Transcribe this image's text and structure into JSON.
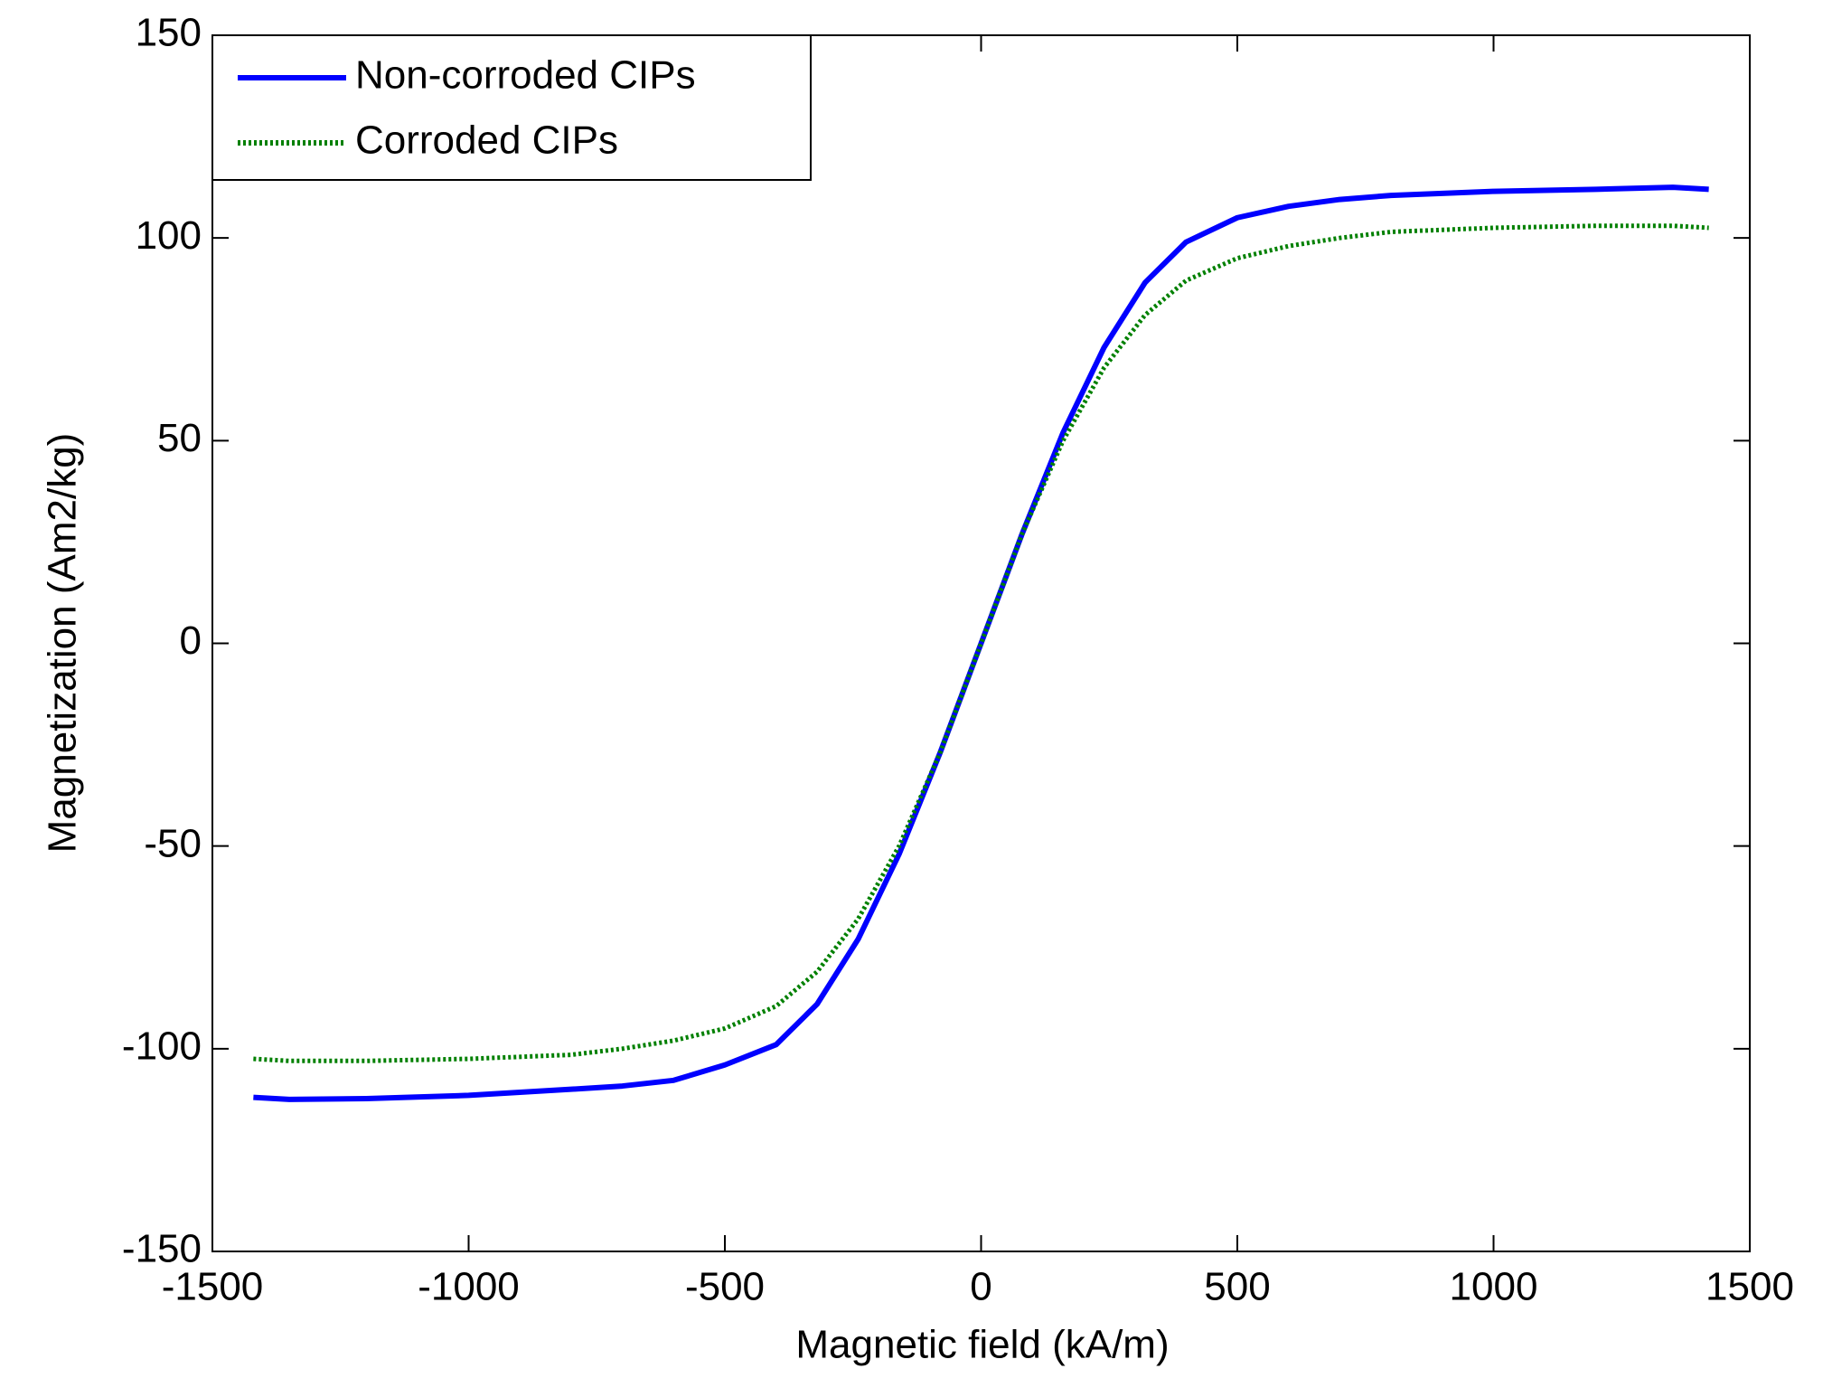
{
  "chart_data": {
    "type": "line",
    "xlabel": "Magnetic field (kA/m)",
    "ylabel": "Magnetization (Am2/kg)",
    "x": [
      -1420,
      -1350,
      -1200,
      -1000,
      -800,
      -700,
      -600,
      -500,
      -400,
      -320,
      -240,
      -160,
      -80,
      0,
      80,
      160,
      240,
      320,
      400,
      500,
      600,
      700,
      800,
      1000,
      1200,
      1350,
      1420
    ],
    "series": [
      {
        "name": "Non-corroded CIPs",
        "color": "#0000ff",
        "style": "solid",
        "values": [
          -112,
          -112.5,
          -112.3,
          -111.5,
          -110,
          -109.2,
          -107.8,
          -104,
          -99,
          -89,
          -73,
          -52,
          -27,
          0,
          27,
          52,
          73,
          89,
          99,
          105,
          107.8,
          109.5,
          110.5,
          111.5,
          112,
          112.5,
          112
        ]
      },
      {
        "name": "Corroded CIPs",
        "color": "#008000",
        "style": "dotted",
        "values": [
          -102.5,
          -103,
          -103,
          -102.5,
          -101.5,
          -100,
          -98,
          -95,
          -89.5,
          -81,
          -68,
          -50,
          -27,
          0,
          27,
          50,
          68,
          81,
          89.5,
          95,
          98,
          100,
          101.5,
          102.5,
          103,
          103,
          102.5
        ]
      }
    ],
    "xlim": [
      -1500,
      1500
    ],
    "xticks": [
      -1500,
      -1000,
      -500,
      0,
      500,
      1000,
      1500
    ],
    "ylim": [
      -150,
      150
    ],
    "yticks": [
      -150,
      -100,
      -50,
      0,
      50,
      100,
      150
    ],
    "legend": "upper left"
  }
}
